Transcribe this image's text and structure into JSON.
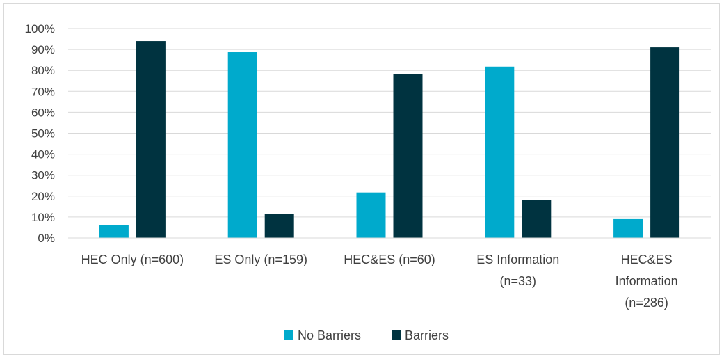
{
  "chart_data": {
    "type": "bar",
    "title": "",
    "xlabel": "",
    "ylabel": "",
    "ylim": [
      0,
      100
    ],
    "y_ticks": [
      "0%",
      "10%",
      "20%",
      "30%",
      "40%",
      "50%",
      "60%",
      "70%",
      "80%",
      "90%",
      "100%"
    ],
    "categories": [
      [
        "HEC Only (n=600)"
      ],
      [
        "ES Only (n=159)"
      ],
      [
        "HEC&ES (n=60)"
      ],
      [
        "ES Information",
        "(n=33)"
      ],
      [
        "HEC&ES",
        "Information",
        "(n=286)"
      ]
    ],
    "series": [
      {
        "name": "No Barriers",
        "color": "#00aacc",
        "values": [
          6,
          88.7,
          21.7,
          81.8,
          9
        ]
      },
      {
        "name": "Barriers",
        "color": "#003340",
        "values": [
          94,
          11.3,
          78.3,
          18.2,
          91
        ]
      }
    ],
    "grid": true,
    "legend": "bottom-center"
  }
}
